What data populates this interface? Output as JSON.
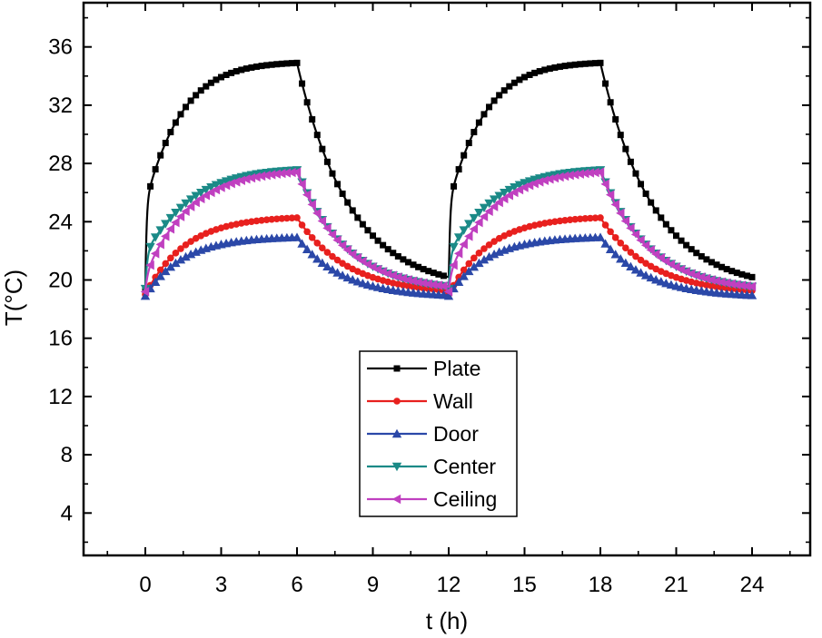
{
  "chart_data": {
    "type": "line",
    "title": "",
    "xlabel": "t (h)",
    "ylabel": "T(°C)",
    "xlim": [
      -2,
      26
    ],
    "ylim": [
      0,
      39
    ],
    "xticks": [
      0,
      3,
      6,
      9,
      12,
      15,
      18,
      21,
      24
    ],
    "yticks": [
      4,
      8,
      12,
      16,
      20,
      24,
      28,
      32,
      36
    ],
    "x_tick_labels": [
      "0",
      "3",
      "6",
      "9",
      "12",
      "15",
      "18",
      "21",
      "24"
    ],
    "y_tick_labels": [
      "4",
      "8",
      "12",
      "16",
      "20",
      "24",
      "28",
      "32",
      "36"
    ],
    "legend_position": "bottom-center",
    "model": "first-order heating during 0-6 h and 12-18 h, exponential cooling during 6-12 h and 18-24 h",
    "series": [
      {
        "name": "Plate",
        "color": "#000000",
        "marker": "square",
        "start": 19.3,
        "steady": 35.0,
        "tau_heat": 1.2,
        "tau_cool": 2.1,
        "floor": 19.3,
        "jump": 6.0,
        "jump_tau": 0.05
      },
      {
        "name": "Wall",
        "color": "#e8201e",
        "marker": "circle",
        "start": 19.0,
        "steady": 24.4,
        "tau_heat": 1.6,
        "tau_cool": 2.0,
        "floor": 19.0,
        "jump": 0,
        "jump_tau": 0.1
      },
      {
        "name": "Door",
        "color": "#2b48a8",
        "marker": "triangle-up",
        "start": 18.9,
        "steady": 23.0,
        "tau_heat": 1.5,
        "tau_cool": 1.8,
        "floor": 18.8,
        "jump": 0,
        "jump_tau": 0.1
      },
      {
        "name": "Center",
        "color": "#1b8a87",
        "marker": "triangle-down",
        "start": 19.4,
        "steady": 27.7,
        "tau_heat": 1.5,
        "tau_cool": 1.9,
        "floor": 19.2,
        "jump": 2.5,
        "jump_tau": 0.08
      },
      {
        "name": "Ceiling",
        "color": "#c040c0",
        "marker": "triangle-left",
        "start": 19.2,
        "steady": 27.6,
        "tau_heat": 1.6,
        "tau_cool": 1.9,
        "floor": 19.2,
        "jump": 1.2,
        "jump_tau": 0.1
      }
    ]
  }
}
